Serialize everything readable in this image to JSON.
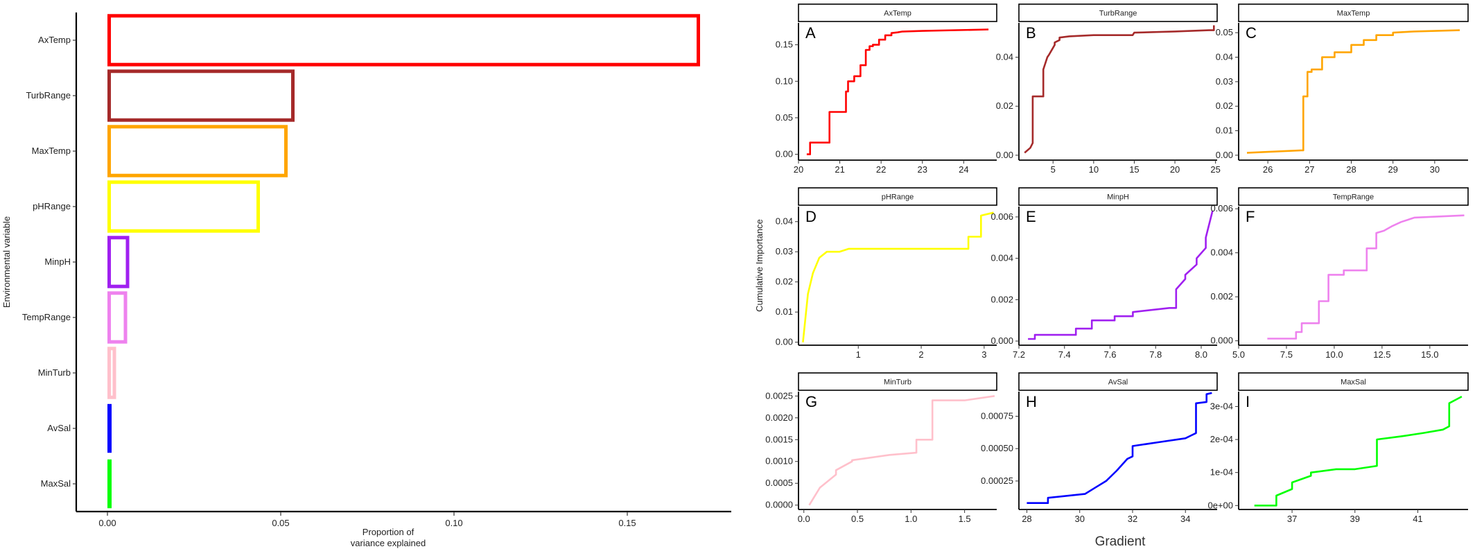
{
  "chart_data": [
    {
      "type": "bar",
      "orientation": "horizontal",
      "xlabel": "Proportion\nof\nvariance explained",
      "ylabel": "Environmental variable",
      "categories": [
        "AxTemp",
        "TurbRange",
        "MaxTemp",
        "pHRange",
        "MinpH",
        "TempRange",
        "MinTurb",
        "AvSal",
        "MaxSal"
      ],
      "values": [
        0.171,
        0.054,
        0.052,
        0.044,
        0.0063,
        0.0057,
        0.0025,
        0.0009,
        0.0003
      ],
      "colors": [
        "#ff0000",
        "#a52a2a",
        "#ffa500",
        "#ffff00",
        "#a020f0",
        "#ee82ee",
        "#ffc0cb",
        "#0000ff",
        "#00ff00"
      ],
      "xlim": [
        -0.009,
        0.18
      ],
      "xticks": [
        0,
        0.05,
        0.1,
        0.15
      ],
      "xtick_labels": [
        "0.00",
        "0.05",
        "0.10",
        "0.15"
      ],
      "grid": false,
      "legend": "none"
    },
    {
      "type": "line",
      "layout": "3x3 facets",
      "xlabel": "Gradient",
      "ylabel": "Cumulative Importance",
      "panels": [
        {
          "strip": "AxTemp",
          "letter": "A",
          "color": "#ff0000",
          "xlim": [
            20,
            24.8
          ],
          "ylim": [
            -0.008,
            0.18
          ],
          "xticks": [
            20,
            21,
            22,
            23,
            24
          ],
          "xtick_labels": [
            "20",
            "21",
            "22",
            "23",
            "24"
          ],
          "yticks": [
            0,
            0.05,
            0.1,
            0.15
          ],
          "ytick_labels": [
            "0.00",
            "0.05",
            "0.10",
            "0.15"
          ],
          "x": [
            20.2,
            20.28,
            20.28,
            20.75,
            20.75,
            21.15,
            21.15,
            21.2,
            21.2,
            21.35,
            21.35,
            21.5,
            21.5,
            21.63,
            21.63,
            21.72,
            21.72,
            21.8,
            21.8,
            21.95,
            21.95,
            22.1,
            22.1,
            22.25,
            22.25,
            22.4,
            22.5,
            23.0,
            24.6
          ],
          "y": [
            0.0,
            0.0,
            0.016,
            0.016,
            0.058,
            0.058,
            0.086,
            0.086,
            0.1,
            0.1,
            0.107,
            0.107,
            0.122,
            0.122,
            0.143,
            0.143,
            0.148,
            0.148,
            0.15,
            0.15,
            0.157,
            0.157,
            0.163,
            0.163,
            0.166,
            0.167,
            0.168,
            0.169,
            0.171
          ]
        },
        {
          "strip": "TurbRange",
          "letter": "B",
          "color": "#a52a2a",
          "xlim": [
            0.8,
            25.2
          ],
          "ylim": [
            -0.002,
            0.054
          ],
          "xticks": [
            5,
            10,
            15,
            20,
            25
          ],
          "xtick_labels": [
            "5",
            "10",
            "15",
            "20",
            "25"
          ],
          "yticks": [
            0,
            0.02,
            0.04
          ],
          "ytick_labels": [
            "0.00",
            "0.02",
            "0.04"
          ],
          "x": [
            1.5,
            2.2,
            2.5,
            2.5,
            3.8,
            3.8,
            4.3,
            4.5,
            5.2,
            5.2,
            5.8,
            5.8,
            7.0,
            10.0,
            14.8,
            15.0,
            20.0,
            24.2,
            24.8,
            24.8
          ],
          "y": [
            0.001,
            0.003,
            0.005,
            0.024,
            0.024,
            0.035,
            0.04,
            0.041,
            0.045,
            0.046,
            0.047,
            0.048,
            0.0485,
            0.049,
            0.049,
            0.05,
            0.0505,
            0.051,
            0.051,
            0.053
          ]
        },
        {
          "strip": "MaxTemp",
          "letter": "C",
          "color": "#ffa500",
          "xlim": [
            25.3,
            30.8
          ],
          "ylim": [
            -0.002,
            0.054
          ],
          "xticks": [
            26,
            27,
            28,
            29,
            30
          ],
          "xtick_labels": [
            "26",
            "27",
            "28",
            "29",
            "30"
          ],
          "yticks": [
            0,
            0.01,
            0.02,
            0.03,
            0.04,
            0.05
          ],
          "ytick_labels": [
            "0.00",
            "0.01",
            "0.02",
            "0.03",
            "0.04",
            "0.05"
          ],
          "x": [
            25.5,
            26.8,
            26.85,
            26.85,
            26.95,
            26.95,
            27.05,
            27.05,
            27.3,
            27.3,
            27.6,
            27.6,
            28.0,
            28.0,
            28.3,
            28.3,
            28.6,
            28.6,
            29.0,
            29.0,
            29.5,
            30.6
          ],
          "y": [
            0.001,
            0.002,
            0.002,
            0.024,
            0.024,
            0.034,
            0.034,
            0.035,
            0.035,
            0.04,
            0.04,
            0.042,
            0.042,
            0.045,
            0.045,
            0.047,
            0.047,
            0.049,
            0.049,
            0.05,
            0.0505,
            0.051
          ]
        },
        {
          "strip": "pHRange",
          "letter": "D",
          "color": "#ffff00",
          "xlim": [
            0.05,
            3.2
          ],
          "ylim": [
            -0.001,
            0.045
          ],
          "xticks": [
            1,
            2,
            3
          ],
          "xtick_labels": [
            "1",
            "2",
            "3"
          ],
          "yticks": [
            0,
            0.01,
            0.02,
            0.03,
            0.04
          ],
          "ytick_labels": [
            "0.00",
            "0.01",
            "0.02",
            "0.03",
            "0.04"
          ],
          "x": [
            0.12,
            0.16,
            0.2,
            0.2,
            0.28,
            0.28,
            0.38,
            0.38,
            0.5,
            0.7,
            0.85,
            1.0,
            1.5,
            2.0,
            2.75,
            2.75,
            2.95,
            2.95,
            3.15
          ],
          "y": [
            0.0,
            0.008,
            0.016,
            0.016,
            0.023,
            0.023,
            0.028,
            0.028,
            0.03,
            0.03,
            0.031,
            0.031,
            0.031,
            0.031,
            0.031,
            0.035,
            0.035,
            0.042,
            0.043
          ]
        },
        {
          "strip": "MinpH",
          "letter": "E",
          "color": "#a020f0",
          "xlim": [
            7.2,
            8.07
          ],
          "ylim": [
            -0.0002,
            0.0065
          ],
          "xticks": [
            7.2,
            7.4,
            7.6,
            7.8,
            8.0
          ],
          "xtick_labels": [
            "7.2",
            "7.4",
            "7.6",
            "7.8",
            "8.0"
          ],
          "yticks": [
            0,
            0.002,
            0.004,
            0.006
          ],
          "ytick_labels": [
            "0.000",
            "0.002",
            "0.004",
            "0.006"
          ],
          "x": [
            7.24,
            7.27,
            7.27,
            7.45,
            7.45,
            7.52,
            7.52,
            7.62,
            7.62,
            7.7,
            7.7,
            7.86,
            7.89,
            7.89,
            7.93,
            7.93,
            7.98,
            7.98,
            8.02,
            8.02,
            8.05
          ],
          "y": [
            0.0001,
            0.0001,
            0.0003,
            0.0003,
            0.0006,
            0.0006,
            0.001,
            0.001,
            0.0012,
            0.0012,
            0.0014,
            0.0016,
            0.0016,
            0.0025,
            0.003,
            0.0032,
            0.0037,
            0.004,
            0.0045,
            0.005,
            0.0063
          ]
        },
        {
          "strip": "TempRange",
          "letter": "F",
          "color": "#ee82ee",
          "xlim": [
            5,
            17
          ],
          "ylim": [
            -0.0002,
            0.0061
          ],
          "xticks": [
            5,
            7.5,
            10,
            12.5,
            15
          ],
          "xtick_labels": [
            "5.0",
            "7.5",
            "10.0",
            "12.5",
            "15.0"
          ],
          "yticks": [
            0,
            0.002,
            0.004,
            0.006
          ],
          "ytick_labels": [
            "0.000",
            "0.002",
            "0.004",
            "0.006"
          ],
          "x": [
            6.5,
            8.0,
            8.0,
            8.3,
            8.3,
            9.2,
            9.2,
            9.7,
            9.7,
            10.5,
            10.5,
            11.7,
            11.7,
            12.2,
            12.2,
            12.6,
            13.0,
            13.5,
            14.2,
            16.8
          ],
          "y": [
            0.0001,
            0.0001,
            0.0004,
            0.0004,
            0.0008,
            0.0008,
            0.0018,
            0.0018,
            0.003,
            0.003,
            0.0032,
            0.0032,
            0.0042,
            0.0042,
            0.0049,
            0.005,
            0.0052,
            0.0054,
            0.0056,
            0.0057
          ]
        },
        {
          "strip": "MinTurb",
          "letter": "G",
          "color": "#ffc0cb",
          "xlim": [
            -0.05,
            1.8
          ],
          "ylim": [
            -0.0001,
            0.0026
          ],
          "xticks": [
            0,
            0.5,
            1,
            1.5
          ],
          "xtick_labels": [
            "0.0",
            "0.5",
            "1.0",
            "1.5"
          ],
          "yticks": [
            0,
            0.0005,
            0.001,
            0.0015,
            0.002,
            0.0025
          ],
          "ytick_labels": [
            "0.0000",
            "0.0005",
            "0.0010",
            "0.0015",
            "0.0020",
            "0.0025"
          ],
          "x": [
            0.05,
            0.1,
            0.15,
            0.2,
            0.3,
            0.3,
            0.45,
            0.45,
            0.6,
            0.8,
            1.05,
            1.05,
            1.2,
            1.2,
            1.5,
            1.78
          ],
          "y": [
            0.0,
            0.0002,
            0.0004,
            0.0005,
            0.0007,
            0.0008,
            0.001,
            0.00103,
            0.00108,
            0.00115,
            0.0012,
            0.0015,
            0.0015,
            0.0024,
            0.0024,
            0.0025
          ]
        },
        {
          "strip": "AvSal",
          "letter": "H",
          "color": "#0000ff",
          "xlim": [
            27.7,
            35.2
          ],
          "ylim": [
            3e-05,
            0.00094
          ],
          "xticks": [
            28,
            30,
            32,
            34
          ],
          "xtick_labels": [
            "28",
            "30",
            "32",
            "34"
          ],
          "yticks": [
            0.00025,
            0.0005,
            0.00075
          ],
          "ytick_labels": [
            "0.00025",
            "0.00050",
            "0.00075"
          ],
          "x": [
            28.0,
            28.8,
            28.8,
            30.2,
            30.6,
            31.0,
            31.4,
            31.8,
            32.0,
            32.0,
            33.0,
            34.0,
            34.2,
            34.4,
            34.4,
            34.8,
            34.8,
            35.0
          ],
          "y": [
            8e-05,
            8e-05,
            0.00012,
            0.00015,
            0.0002,
            0.00025,
            0.00033,
            0.00042,
            0.00044,
            0.00052,
            0.00055,
            0.00058,
            0.0006,
            0.00062,
            0.00085,
            0.00086,
            0.00092,
            0.00093
          ]
        },
        {
          "strip": "MaxSal",
          "letter": "I",
          "color": "#00ff00",
          "xlim": [
            35.3,
            42.6
          ],
          "ylim": [
            -1.2e-05,
            0.000345
          ],
          "xticks": [
            37,
            39,
            41
          ],
          "xtick_labels": [
            "37",
            "39",
            "41"
          ],
          "yticks": [
            0,
            0.0001,
            0.0002,
            0.0003
          ],
          "ytick_labels": [
            "0e+00",
            "1e-04",
            "2e-04",
            "3e-04"
          ],
          "x": [
            35.8,
            36.5,
            36.5,
            37.0,
            37.0,
            37.6,
            37.6,
            38.4,
            39.0,
            39.7,
            39.7,
            40.5,
            41.2,
            41.8,
            42.0,
            42.0,
            42.2,
            42.4
          ],
          "y": [
            0.0,
            0.0,
            3e-05,
            5e-05,
            7e-05,
            9e-05,
            0.0001,
            0.00011,
            0.00011,
            0.00012,
            0.0002,
            0.00021,
            0.00022,
            0.00023,
            0.00024,
            0.00031,
            0.00032,
            0.00033
          ]
        }
      ]
    }
  ]
}
